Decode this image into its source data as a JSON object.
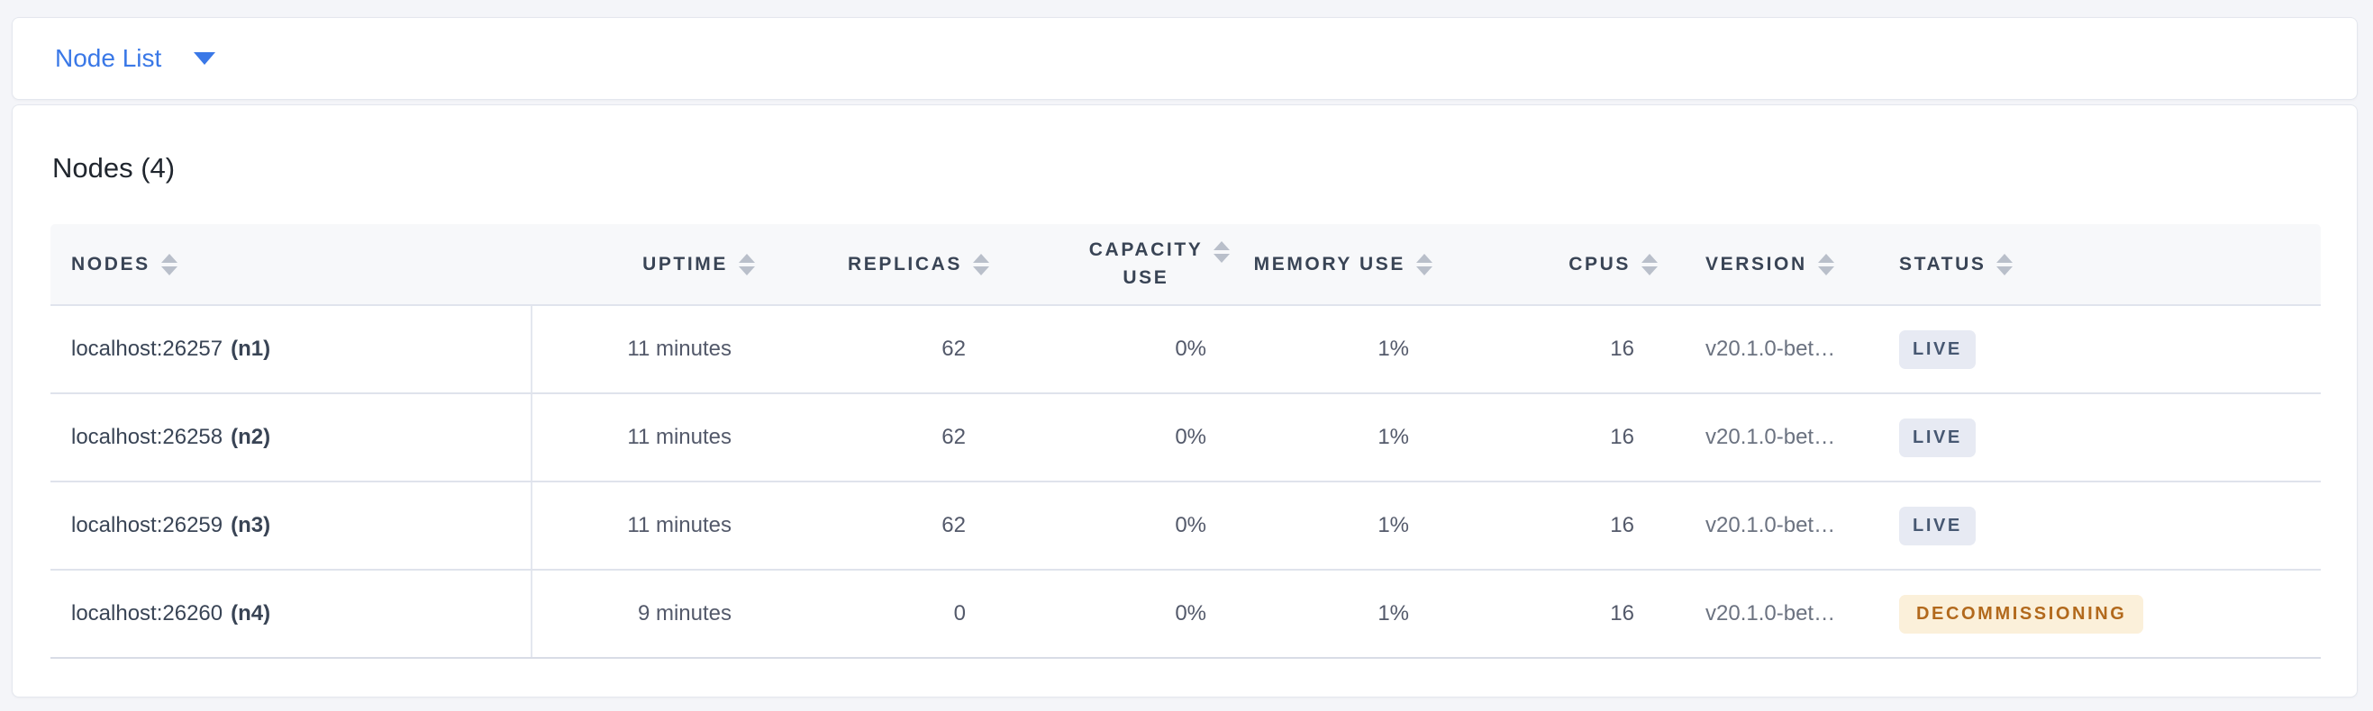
{
  "view_selector": {
    "label": "Node List"
  },
  "main": {
    "title": "Nodes (4)"
  },
  "table": {
    "columns": [
      {
        "key": "nodes",
        "label": "NODES",
        "align": "left"
      },
      {
        "key": "uptime",
        "label": "UPTIME",
        "align": "right"
      },
      {
        "key": "replicas",
        "label": "REPLICAS",
        "align": "right"
      },
      {
        "key": "capacity_use",
        "label": "CAPACITY USE",
        "align": "right",
        "wrap": true
      },
      {
        "key": "memory_use",
        "label": "MEMORY USE",
        "align": "right"
      },
      {
        "key": "cpus",
        "label": "CPUS",
        "align": "right"
      },
      {
        "key": "version",
        "label": "VERSION",
        "align": "left"
      },
      {
        "key": "status",
        "label": "STATUS",
        "align": "left"
      }
    ],
    "rows": [
      {
        "address": "localhost:26257",
        "node_id": "(n1)",
        "uptime": "11 minutes",
        "replicas": "62",
        "capacity_use": "0%",
        "memory_use": "1%",
        "cpus": "16",
        "version": "v20.1.0-bet…",
        "status": "LIVE",
        "status_type": "live"
      },
      {
        "address": "localhost:26258",
        "node_id": "(n2)",
        "uptime": "11 minutes",
        "replicas": "62",
        "capacity_use": "0%",
        "memory_use": "1%",
        "cpus": "16",
        "version": "v20.1.0-bet…",
        "status": "LIVE",
        "status_type": "live"
      },
      {
        "address": "localhost:26259",
        "node_id": "(n3)",
        "uptime": "11 minutes",
        "replicas": "62",
        "capacity_use": "0%",
        "memory_use": "1%",
        "cpus": "16",
        "version": "v20.1.0-bet…",
        "status": "LIVE",
        "status_type": "live"
      },
      {
        "address": "localhost:26260",
        "node_id": "(n4)",
        "uptime": "9 minutes",
        "replicas": "0",
        "capacity_use": "0%",
        "memory_use": "1%",
        "cpus": "16",
        "version": "v20.1.0-bet…",
        "status": "DECOMMISSIONING",
        "status_type": "decommissioning"
      }
    ]
  },
  "colors": {
    "accent_blue": "#3a78e7",
    "live_badge_bg": "#e7eaf3",
    "live_badge_text": "#475872",
    "decommissioning_badge_bg": "#fbf0da",
    "decommissioning_badge_text": "#b2691c"
  }
}
